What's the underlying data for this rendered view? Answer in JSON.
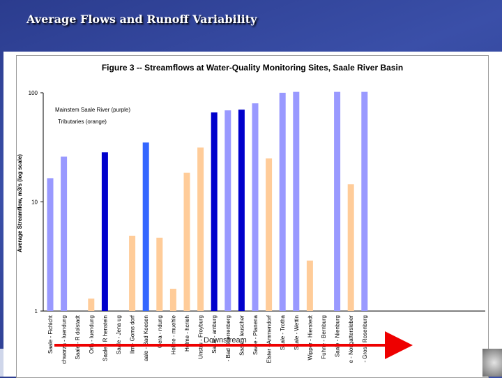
{
  "slide": {
    "title": "Average Flows and Runoff Variability"
  },
  "chart_data": {
    "type": "bar",
    "title": "Figure 3 -- Streamflows at Water-Quality Monitoring Sites, Saale River Basin",
    "ylabel": "Average Streamflow, m3/s (log scale)",
    "yscale": "log",
    "ylim": [
      1,
      100
    ],
    "yticks": [
      "1",
      "10",
      "100"
    ],
    "legend": {
      "mainstem": "Mainstem Saale River (purple)",
      "tributaries": "Tributaries (orange)"
    },
    "annotation": "Downstream",
    "colors": {
      "mainstem_light": "#9999ff",
      "mainstem_dark": "#0000cc",
      "mainstem_mid": "#3366ff",
      "tributary": "#ffcc99"
    },
    "categories": [
      "Saale - Fichicht",
      "chwarza - luendung",
      "Saale - R dolstadt",
      "Orla - luendung",
      "Saale - R henstein",
      "Saale - Jena ug",
      "Ilm - Goms dorf",
      "aale - Bad Koesen",
      "Gera - ndung",
      "Helme - muehle",
      "Helme - hcrieh",
      "Unstru - Froyburg",
      "Saale - amburg",
      "- Bad Duerrenberg",
      "Saale - leuscher",
      "Saale - Planena",
      "Elster - Ammendorf",
      "Saale - Trotha",
      "Saale - Wettin",
      "Wipper - Hierstedt",
      "Fuhne - Bernburg",
      "Saale - Nienburg",
      "e - Nougattersleber",
      "- Gross Rosenburg"
    ],
    "values": [
      16.5,
      26,
      null,
      1.3,
      28.5,
      null,
      4.9,
      35,
      4.7,
      1.6,
      18.5,
      31.5,
      66,
      69,
      70,
      80,
      25,
      100,
      102,
      2.9,
      null,
      102,
      14.5,
      102
    ],
    "bar_types": [
      "mainstem_light",
      "mainstem_light",
      "mainstem_light",
      "tributary",
      "mainstem_dark",
      "mainstem_light",
      "tributary",
      "mainstem_mid",
      "tributary",
      "tributary",
      "tributary",
      "tributary",
      "mainstem_dark",
      "mainstem_light",
      "mainstem_dark",
      "mainstem_light",
      "tributary",
      "mainstem_light",
      "mainstem_light",
      "tributary",
      "tributary",
      "mainstem_light",
      "tributary",
      "mainstem_light"
    ]
  }
}
